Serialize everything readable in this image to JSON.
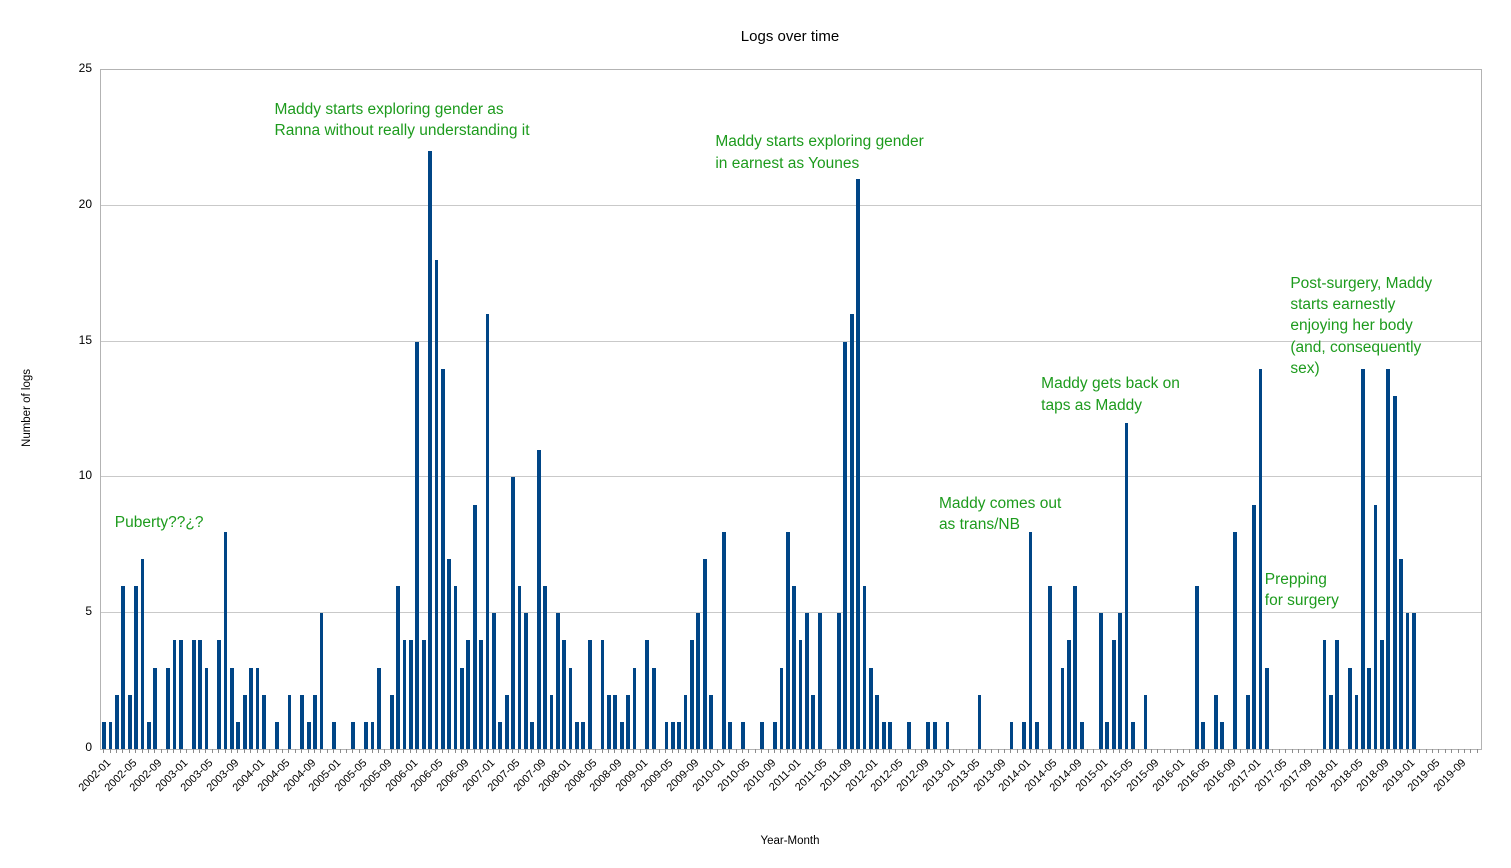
{
  "chart_data": {
    "type": "bar",
    "title": "Logs over time",
    "xlabel": "Year-Month",
    "ylabel": "Number of logs",
    "ylim": [
      0,
      25
    ],
    "yticks": [
      0,
      5,
      10,
      15,
      20,
      25
    ],
    "grid": "horizontal",
    "legend": "none",
    "x_start": "2002-01",
    "x_end": "2019-12",
    "x_tick_label_every": 4,
    "x_tick_labels": [
      "2002-01",
      "2002-05",
      "2002-09",
      "2003-01",
      "2003-05",
      "2003-09",
      "2004-01",
      "2004-05",
      "2004-09",
      "2005-01",
      "2005-05",
      "2005-09",
      "2006-01",
      "2006-05",
      "2006-09",
      "2007-01",
      "2007-05",
      "2007-09",
      "2008-01",
      "2008-05",
      "2008-09",
      "2009-01",
      "2009-05",
      "2009-09",
      "2010-01",
      "2010-05",
      "2010-09",
      "2011-01",
      "2011-05",
      "2011-09",
      "2012-01",
      "2012-05",
      "2012-09",
      "2013-01",
      "2013-05",
      "2013-09",
      "2014-01",
      "2014-05",
      "2014-09",
      "2015-01",
      "2015-05",
      "2015-09",
      "2016-01",
      "2016-05",
      "2016-09",
      "2017-01",
      "2017-05",
      "2017-09",
      "2018-01",
      "2018-05",
      "2018-09",
      "2019-01",
      "2019-05",
      "2019-09"
    ],
    "series": {
      "2002-01": 1,
      "2002-02": 1,
      "2002-03": 2,
      "2002-04": 6,
      "2002-05": 2,
      "2002-06": 6,
      "2002-07": 7,
      "2002-08": 1,
      "2002-09": 3,
      "2002-11": 3,
      "2002-12": 4,
      "2003-01": 4,
      "2003-03": 4,
      "2003-04": 4,
      "2003-05": 3,
      "2003-07": 4,
      "2003-08": 8,
      "2003-09": 3,
      "2003-10": 1,
      "2003-11": 2,
      "2003-12": 3,
      "2004-01": 3,
      "2004-02": 2,
      "2004-04": 1,
      "2004-06": 2,
      "2004-08": 2,
      "2004-09": 1,
      "2004-10": 2,
      "2004-11": 5,
      "2005-01": 1,
      "2005-04": 1,
      "2005-06": 1,
      "2005-07": 1,
      "2005-08": 3,
      "2005-10": 2,
      "2005-11": 6,
      "2005-12": 4,
      "2006-01": 4,
      "2006-02": 15,
      "2006-03": 4,
      "2006-04": 22,
      "2006-05": 18,
      "2006-06": 14,
      "2006-07": 7,
      "2006-08": 6,
      "2006-09": 3,
      "2006-10": 4,
      "2006-11": 9,
      "2006-12": 4,
      "2007-01": 16,
      "2007-02": 5,
      "2007-03": 1,
      "2007-04": 2,
      "2007-05": 10,
      "2007-06": 6,
      "2007-07": 5,
      "2007-08": 1,
      "2007-09": 11,
      "2007-10": 6,
      "2007-11": 2,
      "2007-12": 5,
      "2008-01": 4,
      "2008-02": 3,
      "2008-03": 1,
      "2008-04": 1,
      "2008-05": 4,
      "2008-07": 4,
      "2008-08": 2,
      "2008-09": 2,
      "2008-10": 1,
      "2008-11": 2,
      "2008-12": 3,
      "2009-02": 4,
      "2009-03": 3,
      "2009-05": 1,
      "2009-06": 1,
      "2009-07": 1,
      "2009-08": 2,
      "2009-09": 4,
      "2009-10": 5,
      "2009-11": 7,
      "2009-12": 2,
      "2010-02": 8,
      "2010-03": 1,
      "2010-05": 1,
      "2010-08": 1,
      "2010-10": 1,
      "2010-11": 3,
      "2010-12": 8,
      "2011-01": 6,
      "2011-02": 4,
      "2011-03": 5,
      "2011-04": 2,
      "2011-05": 5,
      "2011-08": 5,
      "2011-09": 15,
      "2011-10": 16,
      "2011-11": 21,
      "2011-12": 6,
      "2012-01": 3,
      "2012-02": 2,
      "2012-03": 1,
      "2012-04": 1,
      "2012-07": 1,
      "2012-10": 1,
      "2012-11": 1,
      "2013-01": 1,
      "2013-06": 2,
      "2013-11": 1,
      "2014-01": 1,
      "2014-02": 8,
      "2014-03": 1,
      "2014-05": 6,
      "2014-07": 3,
      "2014-08": 4,
      "2014-09": 6,
      "2014-10": 1,
      "2015-01": 5,
      "2015-02": 1,
      "2015-03": 4,
      "2015-04": 5,
      "2015-05": 12,
      "2015-06": 1,
      "2015-08": 2,
      "2016-04": 6,
      "2016-05": 1,
      "2016-07": 2,
      "2016-08": 1,
      "2016-10": 8,
      "2016-12": 2,
      "2017-01": 9,
      "2017-02": 14,
      "2017-03": 3,
      "2017-12": 4,
      "2018-01": 2,
      "2018-02": 4,
      "2018-04": 3,
      "2018-05": 2,
      "2018-06": 14,
      "2018-07": 3,
      "2018-08": 9,
      "2018-09": 4,
      "2018-10": 14,
      "2018-11": 13,
      "2018-12": 7,
      "2019-01": 5,
      "2019-02": 5
    },
    "annotations": [
      {
        "text": "Puberty??¿?",
        "month": "2002-03",
        "value": 8.7
      },
      {
        "text": "Maddy starts exploring gender as\nRanna without really understanding it",
        "month": "2004-04",
        "value": 23.9
      },
      {
        "text": "Maddy starts exploring gender\nin earnest as Younes",
        "month": "2010-01",
        "value": 22.7
      },
      {
        "text": "Maddy comes out\nas trans/NB",
        "month": "2012-12",
        "value": 9.4
      },
      {
        "text": "Maddy gets back on\ntaps as Maddy",
        "month": "2014-04",
        "value": 13.8
      },
      {
        "text": "Prepping\nfor surgery",
        "month": "2017-03",
        "value": 6.6
      },
      {
        "text": "Post-surgery, Maddy\nstarts earnestly\nenjoying her body\n(and, consequently\nsex)",
        "month": "2017-07",
        "value": 17.5
      }
    ],
    "colors": {
      "bar": "#004586",
      "annotation": "#1d9b1d",
      "gridline": "#c9c9c9",
      "plot_border": "#b3b3b3",
      "tick": "#8c8c8c",
      "text": "#000000",
      "background": "#ffffff"
    }
  }
}
